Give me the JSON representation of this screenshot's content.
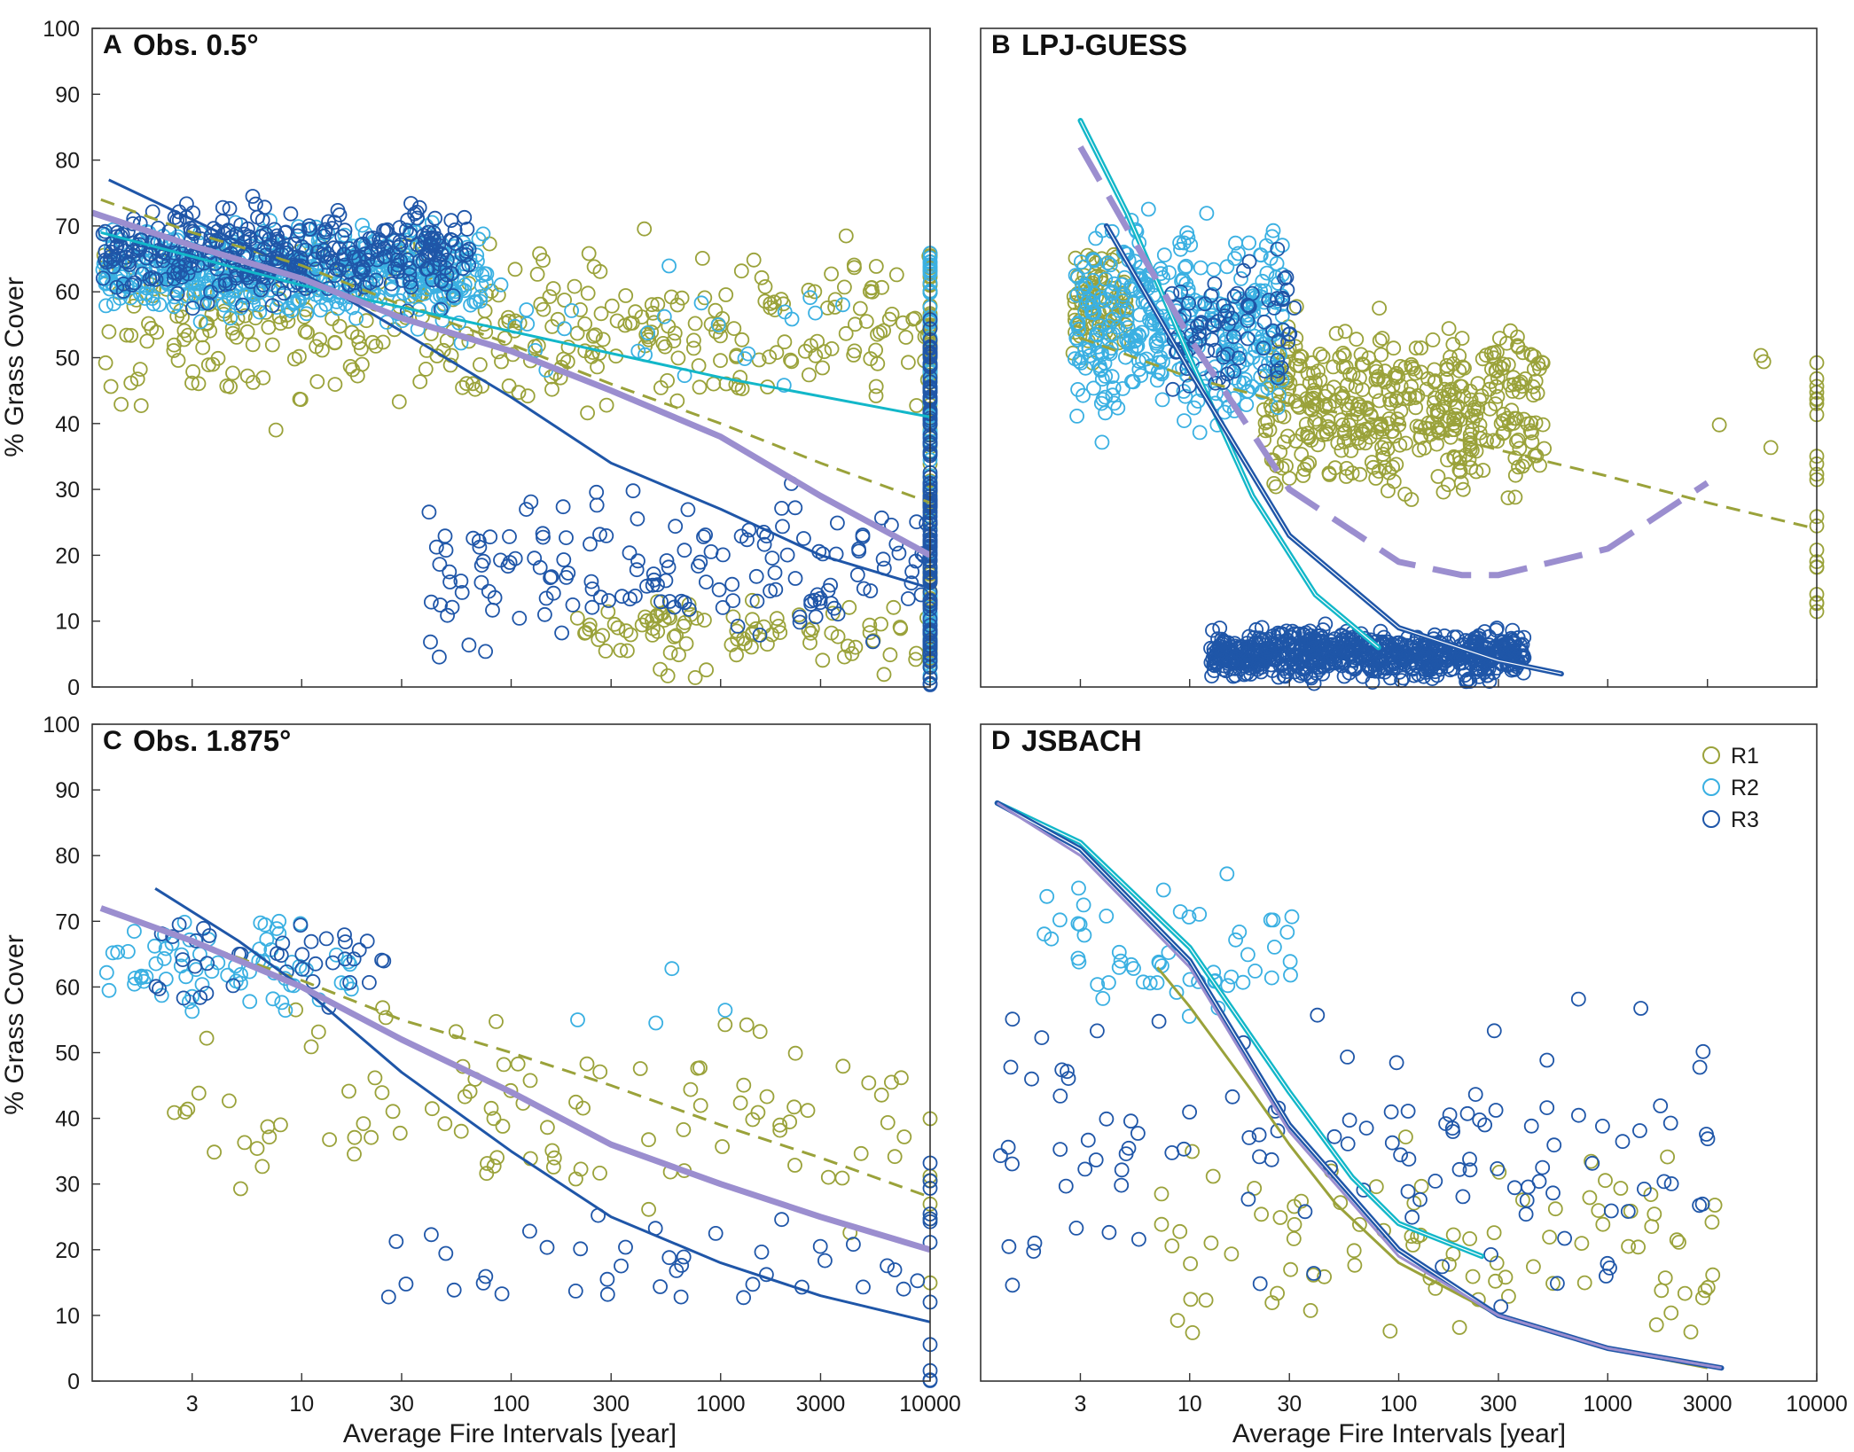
{
  "figure": {
    "ylabel": "% Grass Cover",
    "xlabel": "Average Fire Intervals [year]"
  },
  "legend": [
    {
      "label": "R1",
      "color": "#9aa23a"
    },
    {
      "label": "R2",
      "color": "#3ab0e2"
    },
    {
      "label": "R3",
      "color": "#1f56a8"
    }
  ],
  "chart_data": [
    {
      "type": "scatter",
      "panel": "A",
      "title": "Obs. 0.5°",
      "xlabel": "",
      "ylabel": "% Grass Cover",
      "xscale": "log",
      "xlim": [
        1,
        10000
      ],
      "ylim": [
        0,
        100
      ],
      "yticks": [
        0,
        10,
        20,
        30,
        40,
        50,
        60,
        70,
        80,
        90,
        100
      ],
      "xticks": [],
      "clusters": [
        {
          "series": "R1",
          "n": 360,
          "xlogMin": 0.05,
          "xlogMax": 4.0,
          "yCenter": 55,
          "ySpread": 18
        },
        {
          "series": "R1",
          "n": 90,
          "xlogMin": 2.3,
          "xlogMax": 4.0,
          "yCenter": 8,
          "ySpread": 8
        },
        {
          "series": "R1",
          "n": 120,
          "x": 10000,
          "yMin": 0,
          "yMax": 67
        },
        {
          "series": "R2",
          "n": 520,
          "xlogMin": 0.05,
          "xlogMax": 1.9,
          "yCenter": 63,
          "ySpread": 9
        },
        {
          "series": "R2",
          "n": 30,
          "xlogMin": 1.5,
          "xlogMax": 3.8,
          "yCenter": 55,
          "ySpread": 12
        },
        {
          "series": "R2",
          "n": 90,
          "x": 10000,
          "yMin": 0,
          "yMax": 67
        },
        {
          "series": "R3",
          "n": 380,
          "xlogMin": 0.05,
          "xlogMax": 1.8,
          "yCenter": 66,
          "ySpread": 10
        },
        {
          "series": "R3",
          "n": 160,
          "xlogMin": 1.6,
          "xlogMax": 4.0,
          "yCenter": 18,
          "ySpread": 16
        },
        {
          "series": "R3",
          "n": 130,
          "x": 10000,
          "yMin": 0,
          "yMax": 56
        }
      ],
      "lines": [
        {
          "name": "R1 fit",
          "color": "#9aa23a",
          "dash": true,
          "width": 3,
          "x": [
            1.1,
            3,
            10,
            30,
            100,
            300,
            1000,
            3000,
            10000
          ],
          "y": [
            74,
            69,
            64,
            58,
            52,
            46,
            40,
            34,
            28
          ]
        },
        {
          "name": "R2 fit",
          "color": "#12b7c9",
          "width": 3,
          "x": [
            1.1,
            10,
            100,
            1000,
            10000
          ],
          "y": [
            69,
            61,
            54,
            47,
            41
          ]
        },
        {
          "name": "R3 fit",
          "color": "#1f56a8",
          "width": 3,
          "x": [
            1.2,
            3,
            10,
            30,
            100,
            300,
            1000,
            3000,
            10000
          ],
          "y": [
            77,
            71,
            63,
            54,
            44,
            34,
            27,
            20,
            15
          ]
        },
        {
          "name": "combined fit",
          "color": "#9b8ecf",
          "width": 7,
          "x": [
            1,
            3,
            10,
            30,
            100,
            300,
            1000,
            3000,
            10000
          ],
          "y": [
            72,
            67,
            62,
            56,
            51,
            45,
            38,
            29,
            20
          ]
        }
      ]
    },
    {
      "type": "scatter",
      "panel": "B",
      "title": "LPJ-GUESS",
      "xlabel": "",
      "ylabel": "",
      "xscale": "log",
      "xlim": [
        1,
        10000
      ],
      "ylim": [
        0,
        100
      ],
      "yticks": [],
      "xticks": [],
      "clusters": [
        {
          "series": "R1",
          "n": 90,
          "xlogMin": 0.44,
          "xlogMax": 0.7,
          "yCenter": 58,
          "ySpread": 12
        },
        {
          "series": "R1",
          "n": 430,
          "xlogMin": 1.35,
          "xlogMax": 2.7,
          "yCenter": 42,
          "ySpread": 18
        },
        {
          "series": "R1",
          "n": 22,
          "x": 10000,
          "yMin": 10,
          "yMax": 51
        },
        {
          "series": "R1",
          "n": 4,
          "xlogMin": 3.5,
          "xlogMax": 3.9,
          "yCenter": 45,
          "ySpread": 20
        },
        {
          "series": "R2",
          "n": 380,
          "xlogMin": 0.45,
          "xlogMax": 1.45,
          "yCenter": 55,
          "ySpread": 20
        },
        {
          "series": "R3",
          "n": 80,
          "xlogMin": 0.9,
          "xlogMax": 1.5,
          "yCenter": 55,
          "ySpread": 15
        },
        {
          "series": "R3",
          "n": 720,
          "xlogMin": 1.1,
          "xlogMax": 2.6,
          "yCenter": 5,
          "ySpread": 5
        }
      ],
      "lines": [
        {
          "name": "R1 fit",
          "color": "#9aa23a",
          "dash": true,
          "width": 3,
          "x": [
            3,
            10,
            30,
            100,
            300,
            1000,
            3000,
            10000
          ],
          "y": [
            53,
            47,
            43,
            40,
            36,
            32,
            28,
            24
          ]
        },
        {
          "name": "R2 fit",
          "color": "#12b7c9",
          "width": 3,
          "double": true,
          "x": [
            3,
            5,
            10,
            20,
            40,
            80
          ],
          "y": [
            86,
            72,
            50,
            29,
            14,
            6
          ]
        },
        {
          "name": "R3 fit",
          "color": "#1f56a8",
          "width": 3,
          "double": true,
          "x": [
            4,
            10,
            30,
            100,
            300,
            600
          ],
          "y": [
            70,
            48,
            23,
            9,
            4,
            2
          ]
        },
        {
          "name": "combined fit",
          "color": "#9b8ecf",
          "width": 7,
          "dash": true,
          "x": [
            3,
            10,
            30,
            100,
            200,
            300,
            1000,
            3000
          ],
          "y": [
            82,
            53,
            30,
            19,
            17,
            17,
            21,
            31
          ]
        }
      ]
    },
    {
      "type": "scatter",
      "panel": "C",
      "title": "Obs. 1.875°",
      "xlabel": "Average Fire Intervals [year]",
      "ylabel": "% Grass Cover",
      "xscale": "log",
      "xlim": [
        1,
        10000
      ],
      "ylim": [
        0,
        100
      ],
      "yticks": [
        0,
        10,
        20,
        30,
        40,
        50,
        60,
        70,
        80,
        90,
        100
      ],
      "xticks": [
        3,
        10,
        30,
        100,
        300,
        1000,
        3000,
        10000
      ],
      "clusters": [
        {
          "series": "R1",
          "n": 100,
          "xlogMin": 0.3,
          "xlogMax": 3.9,
          "yCenter": 40,
          "ySpread": 22
        },
        {
          "series": "R1",
          "n": 6,
          "x": 10000,
          "yMin": 5,
          "yMax": 60
        },
        {
          "series": "R2",
          "n": 70,
          "xlogMin": 0.05,
          "xlogMax": 1.25,
          "yCenter": 63,
          "ySpread": 10
        },
        {
          "series": "R2",
          "n": 4,
          "xlogMin": 2.2,
          "xlogMax": 3.1,
          "yCenter": 60,
          "ySpread": 8
        },
        {
          "series": "R3",
          "n": 40,
          "xlogMin": 0.3,
          "xlogMax": 1.4,
          "yCenter": 64,
          "ySpread": 9
        },
        {
          "series": "R3",
          "n": 40,
          "xlogMin": 1.4,
          "xlogMax": 4.0,
          "yCenter": 18,
          "ySpread": 14
        },
        {
          "series": "R3",
          "n": 12,
          "x": 10000,
          "yMin": 0,
          "yMax": 38
        }
      ],
      "lines": [
        {
          "name": "R1 fit",
          "color": "#9aa23a",
          "dash": true,
          "width": 3,
          "x": [
            3,
            10,
            30,
            100,
            300,
            1000,
            3000,
            10000
          ],
          "y": [
            67,
            61,
            55,
            50,
            45,
            39,
            34,
            28
          ]
        },
        {
          "name": "R3 fit",
          "color": "#1f56a8",
          "width": 3,
          "x": [
            2,
            5,
            10,
            30,
            100,
            300,
            1000,
            3000,
            10000
          ],
          "y": [
            75,
            67,
            60,
            47,
            35,
            25,
            18,
            13,
            9
          ]
        },
        {
          "name": "combined fit",
          "color": "#9b8ecf",
          "width": 7,
          "x": [
            1.1,
            3,
            10,
            30,
            100,
            300,
            1000,
            3000,
            10000
          ],
          "y": [
            72,
            67,
            60,
            52,
            44,
            36,
            30,
            25,
            20
          ]
        }
      ]
    },
    {
      "type": "scatter",
      "panel": "D",
      "title": "JSBACH",
      "xlabel": "Average Fire Intervals [year]",
      "ylabel": "",
      "xscale": "log",
      "xlim": [
        1,
        10000
      ],
      "ylim": [
        0,
        100
      ],
      "yticks": [],
      "xticks": [
        3,
        10,
        30,
        100,
        300,
        1000,
        3000,
        10000
      ],
      "clusters": [
        {
          "series": "R1",
          "n": 90,
          "xlogMin": 0.85,
          "xlogMax": 3.55,
          "yCenter": 20,
          "ySpread": 20
        },
        {
          "series": "R2",
          "n": 55,
          "xlogMin": 0.3,
          "xlogMax": 1.5,
          "yCenter": 65,
          "ySpread": 15
        },
        {
          "series": "R3",
          "n": 120,
          "xlogMin": 0.05,
          "xlogMax": 3.55,
          "yCenter": 35,
          "ySpread": 30
        }
      ],
      "lines": [
        {
          "name": "R1 fit",
          "color": "#9aa23a",
          "width": 3,
          "x": [
            7,
            10,
            20,
            30,
            50,
            100,
            300,
            1000,
            3000
          ],
          "y": [
            63,
            57,
            44,
            36,
            27,
            18,
            10,
            5,
            2
          ]
        },
        {
          "name": "R2 fit",
          "color": "#12b7c9",
          "width": 3,
          "double": true,
          "x": [
            1.2,
            3,
            10,
            30,
            60,
            100,
            250
          ],
          "y": [
            88,
            82,
            66,
            44,
            31,
            24,
            19
          ]
        },
        {
          "name": "R3 fit",
          "color": "#1f56a8",
          "width": 3,
          "double": true,
          "x": [
            1.2,
            3,
            10,
            30,
            100,
            300,
            1000,
            3500
          ],
          "y": [
            88,
            81,
            64,
            39,
            20,
            10,
            5,
            2
          ]
        },
        {
          "name": "combined fit",
          "color": "#9b8ecf",
          "width": 3,
          "x": [
            1.2,
            3,
            10,
            30,
            100,
            300,
            1000,
            3500
          ],
          "y": [
            88,
            80,
            63,
            38,
            19,
            10,
            5,
            2
          ]
        }
      ]
    }
  ]
}
